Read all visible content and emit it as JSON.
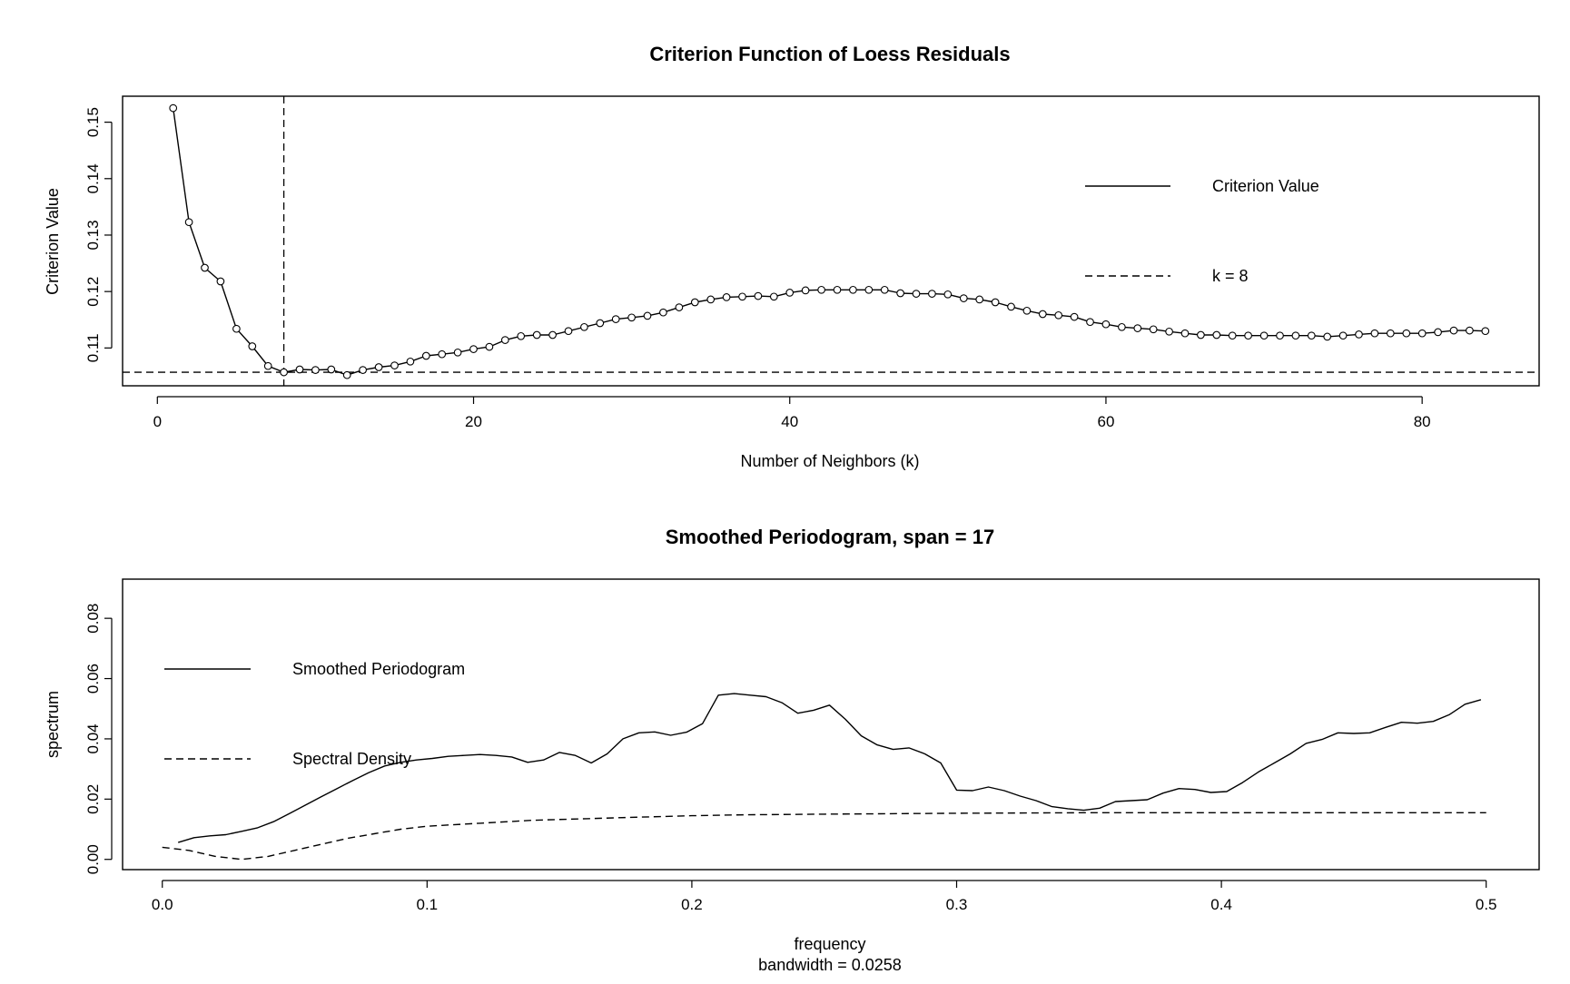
{
  "chart_data": [
    {
      "type": "line",
      "title": "Criterion Function of Loess Residuals",
      "xlabel": "Number of Neighbors (k)",
      "ylabel": "Criterion Value",
      "xlim": [
        -2.2,
        87.4
      ],
      "ylim": [
        0.1033,
        0.1546
      ],
      "x_ticks": [
        0,
        20,
        40,
        60,
        80
      ],
      "x_tick_labels": [
        "0",
        "20",
        "40",
        "60",
        "80"
      ],
      "y_ticks": [
        0.11,
        0.12,
        0.13,
        0.14,
        0.15
      ],
      "y_tick_labels": [
        "0.11",
        "0.12",
        "0.13",
        "0.14",
        "0.15"
      ],
      "legend": {
        "position": "top-right",
        "entries": [
          {
            "label": "Criterion Value",
            "line_style": "solid"
          },
          {
            "label": "k = 8",
            "line_style": "dashed"
          }
        ]
      },
      "reference_lines": [
        {
          "orientation": "vertical",
          "value": 8,
          "line_style": "dashed"
        },
        {
          "orientation": "horizontal",
          "value": 0.1057,
          "line_style": "dashed"
        }
      ],
      "series": [
        {
          "name": "Criterion Value",
          "line_style": "solid",
          "markers": "open-circle",
          "x": [
            1,
            2,
            3,
            4,
            5,
            6,
            7,
            8,
            9,
            10,
            11,
            12,
            13,
            14,
            15,
            16,
            17,
            18,
            19,
            20,
            21,
            22,
            23,
            24,
            25,
            26,
            27,
            28,
            29,
            30,
            31,
            32,
            33,
            34,
            35,
            36,
            37,
            38,
            39,
            40,
            41,
            42,
            43,
            44,
            45,
            46,
            47,
            48,
            49,
            50,
            51,
            52,
            53,
            54,
            55,
            56,
            57,
            58,
            59,
            60,
            61,
            62,
            63,
            64,
            65,
            66,
            67,
            68,
            69,
            70,
            71,
            72,
            73,
            74,
            75,
            76,
            77,
            78,
            79,
            80,
            81,
            82,
            83,
            84
          ],
          "values": [
            0.1525,
            0.1323,
            0.1242,
            0.1218,
            0.1134,
            0.1103,
            0.1068,
            0.1057,
            0.1062,
            0.1061,
            0.1062,
            0.1052,
            0.1061,
            0.1066,
            0.1069,
            0.1076,
            0.1086,
            0.1089,
            0.1092,
            0.1098,
            0.1102,
            0.1114,
            0.1121,
            0.1123,
            0.1123,
            0.113,
            0.1137,
            0.1144,
            0.1151,
            0.1154,
            0.1157,
            0.1163,
            0.1172,
            0.1181,
            0.1186,
            0.119,
            0.1191,
            0.1192,
            0.1191,
            0.1198,
            0.1202,
            0.1203,
            0.1203,
            0.1203,
            0.1203,
            0.1203,
            0.1197,
            0.1196,
            0.1196,
            0.1195,
            0.1188,
            0.1186,
            0.1181,
            0.1173,
            0.1166,
            0.116,
            0.1158,
            0.1155,
            0.1146,
            0.1142,
            0.1137,
            0.1135,
            0.1133,
            0.1129,
            0.1126,
            0.1123,
            0.1123,
            0.1122,
            0.1122,
            0.1122,
            0.1122,
            0.1122,
            0.1122,
            0.112,
            0.1122,
            0.1124,
            0.1126,
            0.1126,
            0.1126,
            0.1126,
            0.1128,
            0.1131,
            0.1131,
            0.113
          ]
        }
      ]
    },
    {
      "type": "line",
      "title": "Smoothed Periodogram, span = 17",
      "xlabel": "frequency",
      "xlabel_sub": "bandwidth = 0.0258",
      "ylabel": "spectrum",
      "xlim": [
        -0.015,
        0.52
      ],
      "ylim": [
        -0.0034,
        0.093
      ],
      "x_ticks": [
        0.0,
        0.1,
        0.2,
        0.3,
        0.4,
        0.5
      ],
      "x_tick_labels": [
        "0.0",
        "0.1",
        "0.2",
        "0.3",
        "0.4",
        "0.5"
      ],
      "y_ticks": [
        0.0,
        0.02,
        0.04,
        0.06,
        0.08
      ],
      "y_tick_labels": [
        "0.00",
        "0.02",
        "0.04",
        "0.06",
        "0.08"
      ],
      "legend": {
        "position": "top-left",
        "entries": [
          {
            "label": "Smoothed Periodogram",
            "line_style": "solid"
          },
          {
            "label": "Spectral Density",
            "line_style": "dashed"
          }
        ]
      },
      "series": [
        {
          "name": "Smoothed Periodogram",
          "line_style": "solid",
          "x": [
            0.006,
            0.012,
            0.018,
            0.024,
            0.03,
            0.036,
            0.042,
            0.048,
            0.054,
            0.06,
            0.066,
            0.072,
            0.078,
            0.084,
            0.09,
            0.096,
            0.102,
            0.108,
            0.114,
            0.12,
            0.126,
            0.132,
            0.138,
            0.144,
            0.15,
            0.156,
            0.162,
            0.168,
            0.174,
            0.18,
            0.186,
            0.192,
            0.198,
            0.204,
            0.21,
            0.216,
            0.222,
            0.228,
            0.234,
            0.24,
            0.246,
            0.252,
            0.258,
            0.264,
            0.27,
            0.276,
            0.282,
            0.288,
            0.294,
            0.3,
            0.306,
            0.312,
            0.318,
            0.324,
            0.33,
            0.336,
            0.342,
            0.348,
            0.354,
            0.36,
            0.366,
            0.372,
            0.378,
            0.384,
            0.39,
            0.396,
            0.402,
            0.408,
            0.414,
            0.42,
            0.426,
            0.432,
            0.438,
            0.444,
            0.45,
            0.456,
            0.462,
            0.468,
            0.474,
            0.48,
            0.486,
            0.492,
            0.498
          ],
          "values": [
            0.0056,
            0.0072,
            0.0078,
            0.0082,
            0.0093,
            0.0105,
            0.0125,
            0.0152,
            0.018,
            0.0208,
            0.0235,
            0.0262,
            0.0288,
            0.031,
            0.0322,
            0.033,
            0.0335,
            0.0342,
            0.0345,
            0.0348,
            0.0345,
            0.034,
            0.0322,
            0.033,
            0.0355,
            0.0345,
            0.032,
            0.035,
            0.04,
            0.042,
            0.0423,
            0.0412,
            0.0422,
            0.045,
            0.0545,
            0.055,
            0.0545,
            0.054,
            0.052,
            0.0485,
            0.0495,
            0.0512,
            0.0465,
            0.041,
            0.038,
            0.0365,
            0.037,
            0.035,
            0.032,
            0.023,
            0.0228,
            0.024,
            0.0228,
            0.021,
            0.0195,
            0.0175,
            0.0168,
            0.0163,
            0.017,
            0.0192,
            0.0195,
            0.0198,
            0.022,
            0.0235,
            0.0232,
            0.0222,
            0.0225,
            0.0255,
            0.029,
            0.032,
            0.035,
            0.0385,
            0.0398,
            0.042,
            0.0418,
            0.042,
            0.0438,
            0.0455,
            0.0452,
            0.0458,
            0.048,
            0.0515,
            0.053
          ]
        },
        {
          "name": "Spectral Density",
          "line_style": "dashed",
          "x": [
            0.0,
            0.01,
            0.02,
            0.03,
            0.04,
            0.05,
            0.06,
            0.07,
            0.08,
            0.09,
            0.1,
            0.12,
            0.14,
            0.16,
            0.18,
            0.2,
            0.22,
            0.25,
            0.28,
            0.3,
            0.35,
            0.4,
            0.45,
            0.5
          ],
          "values": [
            0.004,
            0.003,
            0.001,
            0.0,
            0.001,
            0.003,
            0.005,
            0.007,
            0.0085,
            0.01,
            0.011,
            0.012,
            0.013,
            0.0135,
            0.014,
            0.0145,
            0.0148,
            0.015,
            0.0152,
            0.0153,
            0.0155,
            0.0155,
            0.0155,
            0.0155
          ]
        }
      ]
    }
  ]
}
